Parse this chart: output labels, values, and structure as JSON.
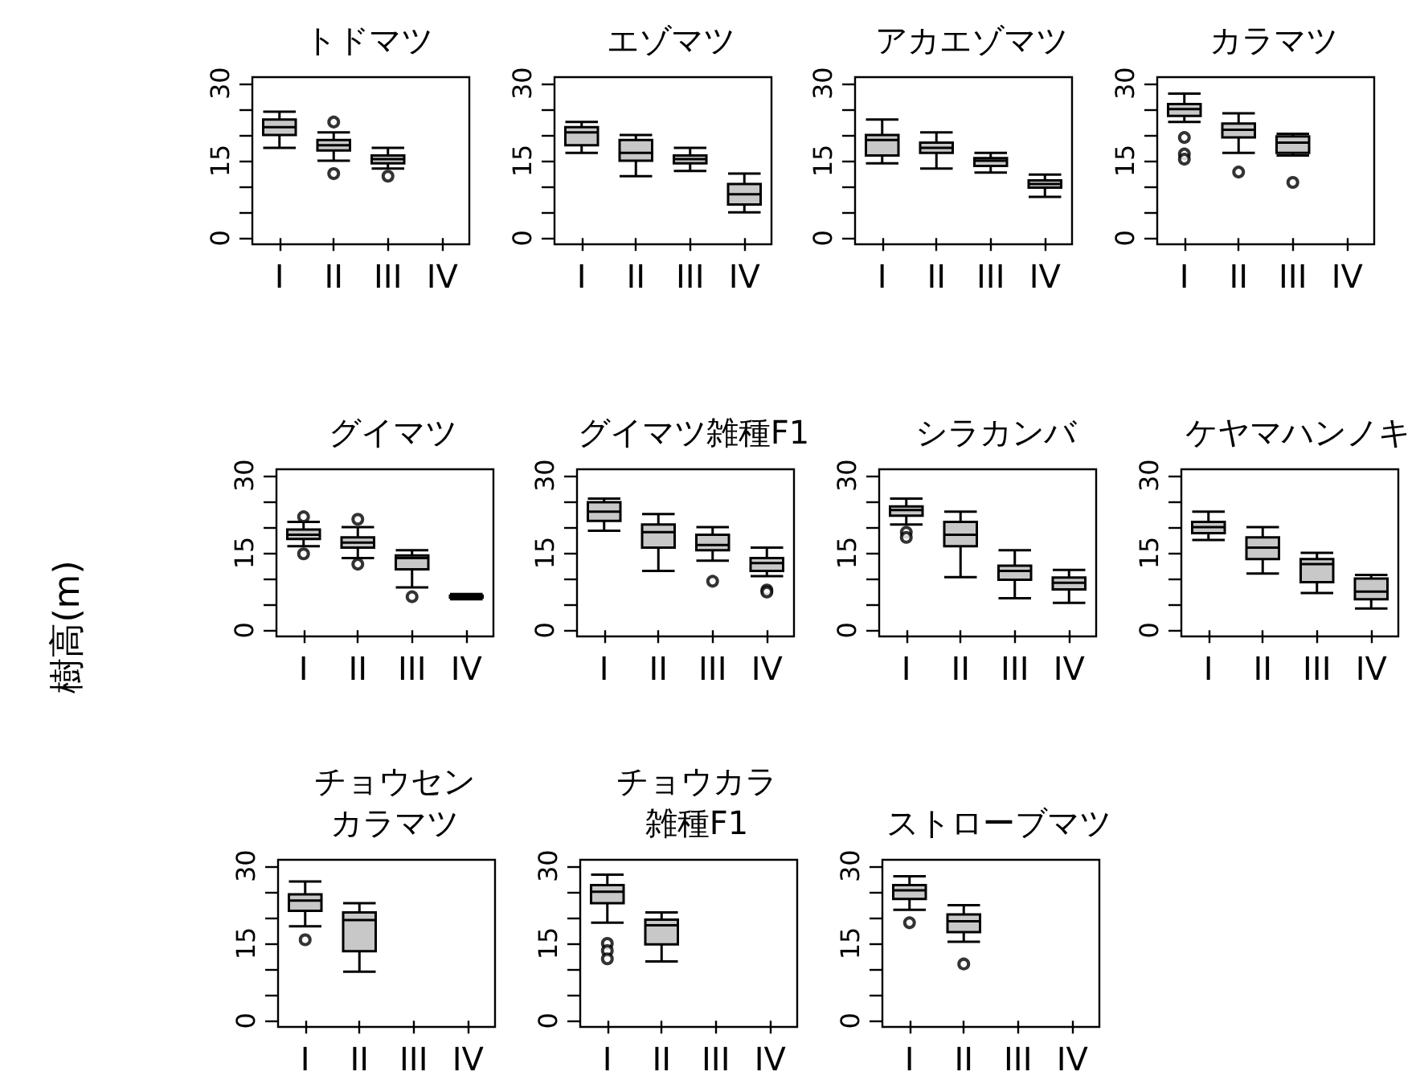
{
  "chart_data": [
    {
      "type": "box",
      "title": "トドマツ",
      "categories": [
        "I",
        "II",
        "III",
        "IV"
      ],
      "color": "#c8c8c8",
      "ylim": [
        -1.2,
        31.2
      ],
      "yticks": [
        0,
        {
          "value": 5,
          "label": null
        },
        {
          "value": 10,
          "label": null
        },
        15,
        {
          "value": 20,
          "label": null
        },
        {
          "value": 25,
          "label": null
        },
        30
      ],
      "grid": false,
      "boxes": [
        {
          "low": 17.5,
          "q1": 20,
          "median": 21.5,
          "q3": 23,
          "high": 24.5
        },
        {
          "low": 15,
          "q1": 17,
          "median": 18,
          "q3": 19,
          "high": 20.5,
          "outliers": [
            22.5,
            12.5
          ]
        },
        {
          "low": 13.5,
          "q1": 14.5,
          "median": 15.3,
          "q3": 16,
          "high": 17.5,
          "outliers": [
            12
          ]
        },
        null
      ]
    },
    {
      "type": "box",
      "title": "エゾマツ",
      "categories": [
        "I",
        "II",
        "III",
        "IV"
      ],
      "color": "#c8c8c8",
      "ylim": [
        -1.2,
        31.2
      ],
      "yticks": [
        0,
        {
          "value": 5,
          "label": null
        },
        {
          "value": 10,
          "label": null
        },
        15,
        {
          "value": 20,
          "label": null
        },
        {
          "value": 25,
          "label": null
        },
        30
      ],
      "grid": false,
      "boxes": [
        {
          "low": 16.5,
          "q1": 18,
          "median": 20.5,
          "q3": 21.5,
          "high": 22.5
        },
        {
          "low": 12,
          "q1": 15,
          "median": 16.5,
          "q3": 19,
          "high": 20
        },
        {
          "low": 13,
          "q1": 14.5,
          "median": 15.3,
          "q3": 16,
          "high": 17.5
        },
        {
          "low": 5,
          "q1": 6.5,
          "median": 8.5,
          "q3": 10.5,
          "high": 12.5
        }
      ]
    },
    {
      "type": "box",
      "title": "アカエゾマツ",
      "categories": [
        "I",
        "II",
        "III",
        "IV"
      ],
      "color": "#c8c8c8",
      "ylim": [
        -1.2,
        31.2
      ],
      "yticks": [
        0,
        {
          "value": 5,
          "label": null
        },
        {
          "value": 10,
          "label": null
        },
        15,
        {
          "value": 20,
          "label": null
        },
        {
          "value": 25,
          "label": null
        },
        30
      ],
      "grid": false,
      "boxes": [
        {
          "low": 14.5,
          "q1": 16,
          "median": 19,
          "q3": 20,
          "high": 23
        },
        {
          "low": 13.5,
          "q1": 16.5,
          "median": 17.5,
          "q3": 18.5,
          "high": 20.5
        },
        {
          "low": 12.7,
          "q1": 14,
          "median": 15,
          "q3": 15.5,
          "high": 16.5
        },
        {
          "low": 8,
          "q1": 9.8,
          "median": 10.5,
          "q3": 11.2,
          "high": 12.3
        }
      ]
    },
    {
      "type": "box",
      "title": "カラマツ",
      "categories": [
        "I",
        "II",
        "III",
        "IV"
      ],
      "color": "#c8c8c8",
      "ylim": [
        -1.2,
        31.2
      ],
      "yticks": [
        0,
        {
          "value": 5,
          "label": null
        },
        {
          "value": 10,
          "label": null
        },
        15,
        {
          "value": 20,
          "label": null
        },
        {
          "value": 25,
          "label": null
        },
        30
      ],
      "grid": false,
      "boxes": [
        {
          "low": 22.5,
          "q1": 23.7,
          "median": 25,
          "q3": 26,
          "high": 28,
          "outliers": [
            19.5,
            16.3,
            15.3
          ]
        },
        {
          "low": 16.5,
          "q1": 19.5,
          "median": 21,
          "q3": 22.2,
          "high": 24.2,
          "outliers": [
            12.8
          ]
        },
        {
          "low": 16,
          "q1": 16.5,
          "median": 18.5,
          "q3": 19.7,
          "high": 20.2,
          "outliers": [
            10.8
          ]
        },
        null
      ]
    },
    {
      "type": "box",
      "title": "グイマツ",
      "ylabel": "樹高(m)",
      "categories": [
        "I",
        "II",
        "III",
        "IV"
      ],
      "color": "#c8c8c8",
      "ylim": [
        -1.2,
        31.2
      ],
      "yticks": [
        0,
        {
          "value": 5,
          "label": null
        },
        {
          "value": 10,
          "label": null
        },
        15,
        {
          "value": 20,
          "label": null
        },
        {
          "value": 25,
          "label": null
        },
        30
      ],
      "grid": false,
      "boxes": [
        {
          "low": 16.3,
          "q1": 17.7,
          "median": 18.5,
          "q3": 19.5,
          "high": 21,
          "outliers": [
            22,
            14.8
          ]
        },
        {
          "low": 14,
          "q1": 16,
          "median": 17,
          "q3": 18,
          "high": 20,
          "outliers": [
            21.5,
            12.8
          ]
        },
        {
          "low": 8.3,
          "q1": 11.8,
          "median": 14,
          "q3": 14.5,
          "high": 15.5,
          "outliers": [
            6.5
          ]
        },
        {
          "low": 6,
          "q1": 6.3,
          "median": 6.5,
          "q3": 6.7,
          "high": 7
        }
      ]
    },
    {
      "type": "box",
      "title": "グイマツ雑種F1",
      "categories": [
        "I",
        "II",
        "III",
        "IV"
      ],
      "color": "#c8c8c8",
      "ylim": [
        -1.2,
        31.2
      ],
      "yticks": [
        0,
        {
          "value": 5,
          "label": null
        },
        {
          "value": 10,
          "label": null
        },
        15,
        {
          "value": 20,
          "label": null
        },
        {
          "value": 25,
          "label": null
        },
        30
      ],
      "grid": false,
      "boxes": [
        {
          "low": 19.3,
          "q1": 21.2,
          "median": 23,
          "q3": 24.8,
          "high": 25.5
        },
        {
          "low": 11.5,
          "q1": 16,
          "median": 19,
          "q3": 20.5,
          "high": 22.5
        },
        {
          "low": 13.5,
          "q1": 15.5,
          "median": 16.5,
          "q3": 18.5,
          "high": 20,
          "outliers": [
            9.5
          ]
        },
        {
          "low": 10.5,
          "q1": 11.5,
          "median": 13,
          "q3": 14,
          "high": 16,
          "outliers": [
            7.8,
            7.4
          ]
        }
      ]
    },
    {
      "type": "box",
      "title": "シラカンバ",
      "categories": [
        "I",
        "II",
        "III",
        "IV"
      ],
      "color": "#c8c8c8",
      "ylim": [
        -1.2,
        31.2
      ],
      "yticks": [
        0,
        {
          "value": 5,
          "label": null
        },
        {
          "value": 10,
          "label": null
        },
        15,
        {
          "value": 20,
          "label": null
        },
        {
          "value": 25,
          "label": null
        },
        30
      ],
      "grid": false,
      "boxes": [
        {
          "low": 20.5,
          "q1": 22.2,
          "median": 23.3,
          "q3": 24,
          "high": 25.5,
          "outliers": [
            19,
            18
          ]
        },
        {
          "low": 10.3,
          "q1": 16.3,
          "median": 18.5,
          "q3": 21,
          "high": 23
        },
        {
          "low": 6.2,
          "q1": 9.8,
          "median": 11.5,
          "q3": 12.5,
          "high": 15.5
        },
        {
          "low": 5.3,
          "q1": 7.9,
          "median": 9.2,
          "q3": 10.2,
          "high": 11.7
        }
      ]
    },
    {
      "type": "box",
      "title": "ケヤマハンノキ",
      "categories": [
        "I",
        "II",
        "III",
        "IV"
      ],
      "color": "#c8c8c8",
      "ylim": [
        -1.2,
        31.2
      ],
      "yticks": [
        0,
        {
          "value": 5,
          "label": null
        },
        {
          "value": 10,
          "label": null
        },
        15,
        {
          "value": 20,
          "label": null
        },
        {
          "value": 25,
          "label": null
        },
        30
      ],
      "grid": false,
      "boxes": [
        {
          "low": 17.5,
          "q1": 18.8,
          "median": 20,
          "q3": 21,
          "high": 23
        },
        {
          "low": 11,
          "q1": 13.8,
          "median": 16,
          "q3": 18,
          "high": 20
        },
        {
          "low": 7.2,
          "q1": 9.3,
          "median": 12.8,
          "q3": 13.8,
          "high": 15
        },
        {
          "low": 4.2,
          "q1": 6,
          "median": 7.5,
          "q3": 10,
          "high": 10.7
        }
      ]
    },
    {
      "type": "box",
      "title": "チョウセン",
      "subtitle": "カラマツ",
      "categories": [
        "I",
        "II",
        "III",
        "IV"
      ],
      "color": "#c8c8c8",
      "ylim": [
        -1.2,
        31.2
      ],
      "yticks": [
        0,
        {
          "value": 5,
          "label": null
        },
        {
          "value": 10,
          "label": null
        },
        15,
        {
          "value": 20,
          "label": null
        },
        {
          "value": 25,
          "label": null
        },
        30
      ],
      "grid": false,
      "boxes": [
        {
          "low": 18.3,
          "q1": 21.3,
          "median": 23.3,
          "q3": 24.5,
          "high": 27,
          "outliers": [
            15.7
          ]
        },
        {
          "low": 9.5,
          "q1": 13.5,
          "median": 19.5,
          "q3": 21,
          "high": 22.8
        },
        null,
        null
      ]
    },
    {
      "type": "box",
      "title": "チョウカラ",
      "subtitle": "雑種F1",
      "categories": [
        "I",
        "II",
        "III",
        "IV"
      ],
      "color": "#c8c8c8",
      "ylim": [
        -1.2,
        31.2
      ],
      "yticks": [
        0,
        {
          "value": 5,
          "label": null
        },
        {
          "value": 10,
          "label": null
        },
        15,
        {
          "value": 20,
          "label": null
        },
        {
          "value": 25,
          "label": null
        },
        30
      ],
      "grid": false,
      "boxes": [
        {
          "low": 19,
          "q1": 22.8,
          "median": 25,
          "q3": 26.3,
          "high": 28.3,
          "outliers": [
            15,
            13.6,
            12
          ]
        },
        {
          "low": 11.5,
          "q1": 14.8,
          "median": 18.5,
          "q3": 19.6,
          "high": 21
        },
        null,
        null
      ]
    },
    {
      "type": "box",
      "title": "ストローブマツ",
      "categories": [
        "I",
        "II",
        "III",
        "IV"
      ],
      "color": "#c8c8c8",
      "ylim": [
        -1.2,
        31.2
      ],
      "yticks": [
        0,
        {
          "value": 5,
          "label": null
        },
        {
          "value": 10,
          "label": null
        },
        15,
        {
          "value": 20,
          "label": null
        },
        {
          "value": 25,
          "label": null
        },
        30
      ],
      "grid": false,
      "boxes": [
        {
          "low": 21.5,
          "q1": 23.6,
          "median": 25.3,
          "q3": 26.3,
          "high": 28,
          "outliers": [
            19
          ]
        },
        {
          "low": 15.3,
          "q1": 17.2,
          "median": 19.3,
          "q3": 20.6,
          "high": 22.4,
          "outliers": [
            11
          ]
        },
        null,
        null
      ]
    }
  ]
}
